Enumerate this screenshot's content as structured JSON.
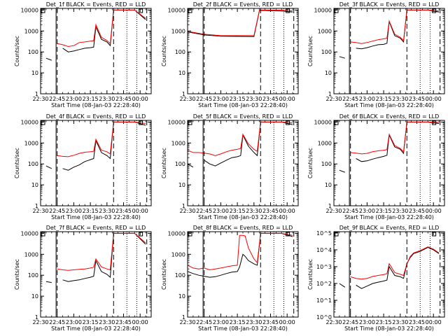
{
  "figure": {
    "x_tick_labels": [
      "22:30",
      "22:45",
      "23:00",
      "23:15",
      "23:30",
      "23:45",
      "00:00"
    ],
    "xlabel": "Start Time (08-Jan-03 22:28:40)",
    "ylabel": "Counts/sec",
    "colors": {
      "events": "#000000",
      "lld": "#ff0000",
      "axes": "#000000"
    }
  },
  "chart_data": [
    {
      "type": "line",
      "title": "Det_1f BLACK = Events, RED = LLD",
      "xlabel": "Start Time (08-Jan-03 22:28:40)",
      "ylabel": "Counts/sec",
      "y_scale": "log",
      "y_ticks": [
        "1",
        "10",
        "100",
        "1000",
        "10000"
      ],
      "ylim": [
        1,
        12000
      ],
      "x": [
        "22:35",
        "22:40",
        "22:45",
        "22:50",
        "22:55",
        "23:00",
        "23:05",
        "23:10",
        "23:15",
        "23:18",
        "23:20",
        "23:25",
        "23:30",
        "23:33",
        "23:36",
        "23:39",
        "23:42",
        "23:48",
        "23:55",
        "00:05"
      ],
      "series": [
        {
          "name": "BLACK = Events",
          "color": "#000000",
          "values": [
            50,
            40,
            null,
            150,
            100,
            110,
            130,
            150,
            160,
            170,
            1600,
            400,
            300,
            200,
            10000,
            10000,
            10000,
            10000,
            10000,
            3500
          ]
        },
        {
          "name": "RED = LLD",
          "color": "#ff0000",
          "values": [
            null,
            null,
            250,
            220,
            180,
            200,
            280,
            300,
            330,
            340,
            2000,
            500,
            350,
            250,
            10000,
            10000,
            10000,
            10000,
            10000,
            4000
          ]
        }
      ]
    },
    {
      "type": "line",
      "title": "Det_2f BLACK = Events, RED = LLD",
      "xlabel": "Start Time (08-Jan-03 22:28:40)",
      "ylabel": "Counts/sec",
      "y_scale": "log",
      "y_ticks": [
        "1",
        "10",
        "100",
        "1000",
        "10000"
      ],
      "ylim": [
        1,
        12000
      ],
      "x": [
        "22:30",
        "22:45",
        "23:00",
        "23:15",
        "23:30",
        "23:35",
        "23:40",
        "23:55",
        "00:05"
      ],
      "series": [
        {
          "name": "BLACK = Events",
          "color": "#000000",
          "values": [
            900,
            650,
            560,
            550,
            540,
            9500,
            9500,
            9000,
            8000
          ]
        },
        {
          "name": "RED = LLD",
          "color": "#ff0000",
          "values": [
            950,
            700,
            600,
            600,
            600,
            10000,
            10000,
            10000,
            9000
          ]
        }
      ]
    },
    {
      "type": "line",
      "title": "Det_3f BLACK = Events, RED = LLD",
      "xlabel": "Start Time (08-Jan-03 22:28:40)",
      "ylabel": "Counts/sec",
      "y_scale": "log",
      "y_ticks": [
        "1",
        "10",
        "100",
        "1000",
        "10000"
      ],
      "ylim": [
        1,
        12000
      ],
      "x": [
        "22:35",
        "22:40",
        "22:45",
        "22:50",
        "22:55",
        "23:00",
        "23:05",
        "23:10",
        "23:15",
        "23:18",
        "23:20",
        "23:25",
        "23:30",
        "23:33",
        "23:36",
        "23:39",
        "23:42",
        "23:48",
        "23:55",
        "00:05"
      ],
      "series": [
        {
          "name": "BLACK = Events",
          "color": "#000000",
          "values": [
            60,
            50,
            null,
            150,
            140,
            160,
            190,
            220,
            230,
            260,
            2800,
            600,
            450,
            300,
            10000,
            10000,
            10000,
            10000,
            10000,
            8000
          ]
        },
        {
          "name": "RED = LLD",
          "color": "#ff0000",
          "values": [
            null,
            null,
            300,
            280,
            250,
            280,
            330,
            380,
            420,
            450,
            3000,
            700,
            500,
            350,
            10000,
            10000,
            10000,
            10000,
            10000,
            9000
          ]
        }
      ]
    },
    {
      "type": "line",
      "title": "Det_4f BLACK = Events, RED = LLD",
      "xlabel": "Start Time (08-Jan-03 22:28:40)",
      "ylabel": "Counts/sec",
      "y_scale": "log",
      "y_ticks": [
        "1",
        "10",
        "100",
        "1000",
        "10000"
      ],
      "ylim": [
        1,
        12000
      ],
      "x": [
        "22:35",
        "22:40",
        "22:45",
        "22:50",
        "22:55",
        "23:00",
        "23:05",
        "23:10",
        "23:15",
        "23:18",
        "23:20",
        "23:25",
        "23:30",
        "23:33",
        "23:36",
        "23:39",
        "23:42",
        "23:48",
        "23:55",
        "00:05"
      ],
      "series": [
        {
          "name": "BLACK = Events",
          "color": "#000000",
          "values": [
            80,
            60,
            null,
            60,
            50,
            70,
            90,
            130,
            160,
            180,
            1300,
            350,
            250,
            180,
            10000,
            10000,
            10000,
            10000,
            10000,
            7000
          ]
        },
        {
          "name": "RED = LLD",
          "color": "#ff0000",
          "values": [
            null,
            null,
            250,
            230,
            220,
            260,
            320,
            360,
            380,
            400,
            1500,
            450,
            380,
            300,
            10000,
            10000,
            10000,
            10000,
            10000,
            8500
          ]
        }
      ]
    },
    {
      "type": "line",
      "title": "Det_5f BLACK = Events, RED = LLD",
      "xlabel": "Start Time (08-Jan-03 22:28:40)",
      "ylabel": "Counts/sec",
      "y_scale": "log",
      "y_ticks": [
        "1",
        "10",
        "100",
        "1000",
        "10000"
      ],
      "ylim": [
        1,
        12000
      ],
      "x": [
        "22:30",
        "22:35",
        "22:40",
        "22:45",
        "22:50",
        "22:55",
        "23:00",
        "23:05",
        "23:10",
        "23:15",
        "23:18",
        "23:20",
        "23:25",
        "23:30",
        "23:33",
        "23:36",
        "23:39",
        "23:42",
        "23:48",
        "23:55",
        "00:05"
      ],
      "series": [
        {
          "name": "BLACK = Events",
          "color": "#000000",
          "values": [
            100,
            70,
            null,
            150,
            100,
            80,
            110,
            150,
            200,
            220,
            250,
            2400,
            700,
            350,
            250,
            10000,
            10000,
            10000,
            10000,
            10000,
            7500
          ]
        },
        {
          "name": "RED = LLD",
          "color": "#ff0000",
          "values": [
            450,
            350,
            350,
            330,
            300,
            250,
            300,
            380,
            450,
            500,
            550,
            2600,
            900,
            500,
            400,
            10000,
            10000,
            10000,
            10000,
            10000,
            9000
          ]
        }
      ]
    },
    {
      "type": "line",
      "title": "Det_6f BLACK = Events, RED = LLD",
      "xlabel": "Start Time (08-Jan-03 22:28:40)",
      "ylabel": "Counts/sec",
      "y_scale": "log",
      "y_ticks": [
        "1",
        "10",
        "100",
        "1000",
        "10000"
      ],
      "ylim": [
        1,
        12000
      ],
      "x": [
        "22:35",
        "22:40",
        "22:45",
        "22:50",
        "22:55",
        "23:00",
        "23:05",
        "23:10",
        "23:15",
        "23:18",
        "23:20",
        "23:25",
        "23:30",
        "23:33",
        "23:36",
        "23:39",
        "23:42",
        "23:48",
        "23:55",
        "00:05"
      ],
      "series": [
        {
          "name": "BLACK = Events",
          "color": "#000000",
          "values": [
            50,
            40,
            null,
            180,
            130,
            140,
            170,
            200,
            230,
            260,
            2400,
            650,
            500,
            320,
            10000,
            10000,
            10000,
            10000,
            10000,
            8500
          ]
        },
        {
          "name": "RED = LLD",
          "color": "#ff0000",
          "values": [
            null,
            null,
            350,
            330,
            300,
            320,
            380,
            420,
            450,
            480,
            2600,
            750,
            550,
            380,
            10000,
            10000,
            10000,
            10000,
            10000,
            9500
          ]
        }
      ]
    },
    {
      "type": "line",
      "title": "Det_7f BLACK = Events, RED = LLD",
      "xlabel": "Start Time (08-Jan-03 22:28:40)",
      "ylabel": "Counts/sec",
      "y_scale": "log",
      "y_ticks": [
        "1",
        "10",
        "100",
        "1000",
        "10000"
      ],
      "ylim": [
        1,
        12000
      ],
      "x": [
        "22:35",
        "22:40",
        "22:45",
        "22:50",
        "22:55",
        "23:00",
        "23:05",
        "23:10",
        "23:15",
        "23:18",
        "23:20",
        "23:25",
        "23:30",
        "23:33",
        "23:36",
        "23:39",
        "23:42",
        "23:48",
        "23:55",
        "00:05"
      ],
      "series": [
        {
          "name": "BLACK = Events",
          "color": "#000000",
          "values": [
            50,
            45,
            null,
            60,
            50,
            55,
            60,
            70,
            80,
            90,
            500,
            150,
            110,
            80,
            10000,
            10000,
            10000,
            10000,
            10000,
            3000
          ]
        },
        {
          "name": "RED = LLD",
          "color": "#ff0000",
          "values": [
            null,
            null,
            200,
            180,
            170,
            180,
            190,
            200,
            220,
            240,
            600,
            250,
            200,
            180,
            10000,
            10000,
            10000,
            10000,
            10000,
            3500
          ]
        }
      ]
    },
    {
      "type": "line",
      "title": "Det_8f BLACK = Events, RED = LLD",
      "xlabel": "Start Time (08-Jan-03 22:28:40)",
      "ylabel": "Counts/sec",
      "y_scale": "log",
      "y_ticks": [
        "1",
        "10",
        "100",
        "1000",
        "10000"
      ],
      "ylim": [
        1,
        12000
      ],
      "x": [
        "22:30",
        "22:35",
        "22:40",
        "22:45",
        "22:50",
        "22:55",
        "23:00",
        "23:05",
        "23:10",
        "23:15",
        "23:17",
        "23:20",
        "23:22",
        "23:25",
        "23:30",
        "23:33",
        "23:36",
        "23:39",
        "23:42",
        "23:48",
        "23:55",
        "00:05"
      ],
      "series": [
        {
          "name": "BLACK = Events",
          "color": "#000000",
          "values": [
            150,
            120,
            100,
            90,
            80,
            85,
            100,
            120,
            140,
            150,
            250,
            1000,
            800,
            500,
            350,
            300,
            10000,
            10000,
            10000,
            10000,
            10000,
            7000
          ]
        },
        {
          "name": "RED = LLD",
          "color": "#ff0000",
          "values": [
            300,
            220,
            200,
            220,
            180,
            200,
            220,
            250,
            280,
            300,
            8000,
            8000,
            7500,
            2000,
            600,
            400,
            10000,
            10000,
            10000,
            10000,
            10000,
            8000
          ]
        }
      ]
    },
    {
      "type": "line",
      "title": "Det_9f BLACK = Events, RED = LLD",
      "xlabel": "Start Time (08-Jan-03 22:28:40)",
      "ylabel": "Counts/sec",
      "y_scale": "log",
      "y_ticks": [
        "10^0",
        "10^1",
        "10^2",
        "10^3",
        "10^4",
        "10^5"
      ],
      "ylim": [
        1,
        120000
      ],
      "x": [
        "22:35",
        "22:40",
        "22:45",
        "22:50",
        "22:55",
        "23:00",
        "23:05",
        "23:10",
        "23:15",
        "23:18",
        "23:20",
        "23:25",
        "23:30",
        "23:33",
        "23:36",
        "23:39",
        "23:42",
        "23:48",
        "23:55",
        "00:00",
        "00:05"
      ],
      "series": [
        {
          "name": "BLACK = Events",
          "color": "#000000",
          "values": [
            100,
            60,
            null,
            80,
            50,
            70,
            100,
            120,
            140,
            160,
            1000,
            300,
            250,
            200,
            1500,
            3500,
            6000,
            8000,
            14000,
            10000,
            6000
          ]
        },
        {
          "name": "RED = LLD",
          "color": "#ff0000",
          "values": [
            null,
            null,
            250,
            200,
            180,
            200,
            260,
            300,
            340,
            380,
            1500,
            450,
            350,
            300,
            1500,
            4000,
            6500,
            9000,
            15000,
            11000,
            6500
          ]
        }
      ]
    }
  ]
}
